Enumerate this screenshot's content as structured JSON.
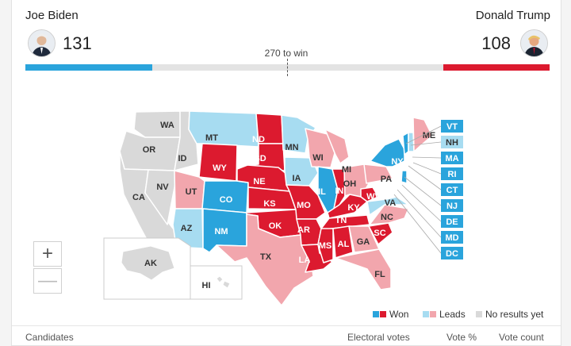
{
  "candidates": {
    "left": {
      "name": "Joe Biden",
      "votes": "131"
    },
    "right": {
      "name": "Donald Trump",
      "votes": "108"
    }
  },
  "to_win": "270 to win",
  "colors": {
    "won_blue": "#2aa4dc",
    "won_red": "#dc1a2f",
    "lead_blue": "#a7dcf1",
    "lead_red": "#f2a6ad",
    "no_results": "#d9d9d9"
  },
  "map": {
    "states": [
      "WA",
      "MT",
      "ND",
      "MN",
      "ME",
      "OR",
      "ID",
      "SD",
      "WI",
      "MI",
      "WY",
      "NY",
      "NV",
      "NE",
      "IA",
      "PA",
      "UT",
      "CO",
      "IL",
      "IN",
      "OH",
      "CA",
      "KS",
      "MO",
      "KY",
      "WV",
      "VA",
      "AZ",
      "NM",
      "OK",
      "TN",
      "NC",
      "AR",
      "SC",
      "MS",
      "AL",
      "GA",
      "TX",
      "LA",
      "FL",
      "AK",
      "HI"
    ],
    "side_states": [
      "VT",
      "NH",
      "MA",
      "RI",
      "CT",
      "NJ",
      "DE",
      "MD",
      "DC"
    ]
  },
  "zoom": {
    "in": "+",
    "out": "—"
  },
  "legend": {
    "won": "Won",
    "leads": "Leads",
    "no_results": "No results yet"
  },
  "columns": {
    "candidates": "Candidates",
    "electoral": "Electoral votes",
    "vote_pct": "Vote %",
    "vote_count": "Vote count"
  }
}
